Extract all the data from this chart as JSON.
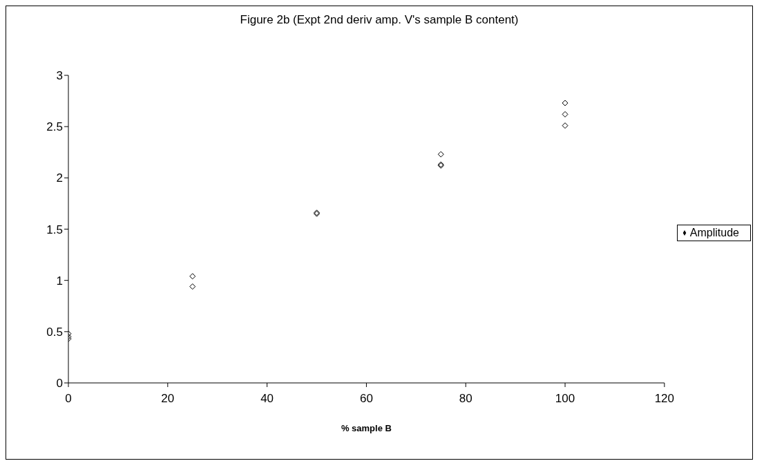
{
  "chart_data": {
    "type": "scatter",
    "title": "Figure 2b (Expt 2nd deriv amp. V's sample B content)",
    "xlabel": "% sample B",
    "series": [
      {
        "name": "Amplitude",
        "color": "#000000",
        "x": [
          0,
          0,
          0,
          25,
          25,
          50,
          50,
          75,
          75,
          75,
          100,
          100,
          100
        ],
        "values": [
          0.48,
          0.45,
          0.43,
          1.04,
          0.94,
          1.66,
          1.65,
          2.23,
          2.13,
          2.12,
          2.73,
          2.62,
          2.51
        ]
      }
    ],
    "xlim": [
      0,
      120
    ],
    "xticks": [
      0,
      20,
      40,
      60,
      80,
      100,
      120
    ],
    "ylim": [
      0,
      3
    ],
    "yticks": [
      0,
      0.5,
      1,
      1.5,
      2,
      2.5,
      3
    ],
    "grid": false,
    "legend": "right",
    "marker": "diamond"
  }
}
